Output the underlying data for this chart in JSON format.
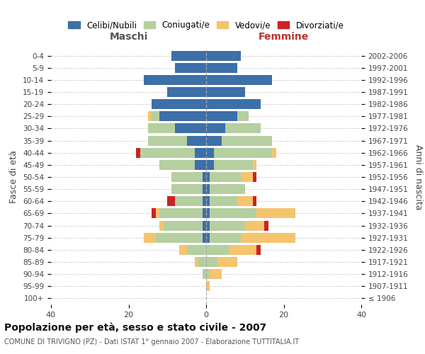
{
  "age_groups": [
    "0-4",
    "5-9",
    "10-14",
    "15-19",
    "20-24",
    "25-29",
    "30-34",
    "35-39",
    "40-44",
    "45-49",
    "50-54",
    "55-59",
    "60-64",
    "65-69",
    "70-74",
    "75-79",
    "80-84",
    "85-89",
    "90-94",
    "95-99",
    "100+"
  ],
  "birth_years": [
    "2002-2006",
    "1997-2001",
    "1992-1996",
    "1987-1991",
    "1982-1986",
    "1977-1981",
    "1972-1976",
    "1967-1971",
    "1962-1966",
    "1957-1961",
    "1952-1956",
    "1947-1951",
    "1942-1946",
    "1937-1941",
    "1932-1936",
    "1927-1931",
    "1922-1926",
    "1917-1921",
    "1912-1916",
    "1907-1911",
    "≤ 1906"
  ],
  "males": {
    "celibi": [
      9,
      8,
      16,
      10,
      14,
      12,
      8,
      5,
      3,
      3,
      1,
      1,
      1,
      1,
      1,
      1,
      0,
      0,
      0,
      0,
      0
    ],
    "coniugati": [
      0,
      0,
      0,
      0,
      0,
      2,
      7,
      10,
      14,
      9,
      8,
      8,
      7,
      11,
      10,
      12,
      5,
      2,
      1,
      0,
      0
    ],
    "vedovi": [
      0,
      0,
      0,
      0,
      0,
      1,
      0,
      0,
      0,
      0,
      0,
      0,
      0,
      1,
      1,
      3,
      2,
      1,
      0,
      0,
      0
    ],
    "divorziati": [
      0,
      0,
      0,
      0,
      0,
      0,
      0,
      0,
      1,
      0,
      0,
      0,
      2,
      1,
      0,
      0,
      0,
      0,
      0,
      0,
      0
    ]
  },
  "females": {
    "nubili": [
      9,
      8,
      17,
      10,
      14,
      8,
      5,
      4,
      2,
      2,
      1,
      1,
      1,
      1,
      1,
      1,
      0,
      0,
      0,
      0,
      0
    ],
    "coniugate": [
      0,
      0,
      0,
      0,
      0,
      3,
      9,
      13,
      15,
      10,
      8,
      9,
      7,
      12,
      9,
      8,
      6,
      3,
      1,
      0,
      0
    ],
    "vedove": [
      0,
      0,
      0,
      0,
      0,
      0,
      0,
      0,
      1,
      1,
      3,
      0,
      4,
      10,
      5,
      14,
      7,
      5,
      3,
      1,
      0
    ],
    "divorziate": [
      0,
      0,
      0,
      0,
      0,
      0,
      0,
      0,
      0,
      0,
      1,
      0,
      1,
      0,
      1,
      0,
      1,
      0,
      0,
      0,
      0
    ]
  },
  "colors": {
    "celibi": "#3d6fa8",
    "coniugati": "#b5cfa0",
    "vedovi": "#f5c46e",
    "divorziati": "#cc2222"
  },
  "title": "Popolazione per età, sesso e stato civile - 2007",
  "subtitle": "COMUNE DI TRIVIGNO (PZ) - Dati ISTAT 1° gennaio 2007 - Elaborazione TUTTITALIA.IT",
  "xlabel_left": "Maschi",
  "xlabel_right": "Femmine",
  "ylabel_left": "Fasce di età",
  "ylabel_right": "Anni di nascita",
  "xlim": 40,
  "legend_labels": [
    "Celibi/Nubili",
    "Coniugati/e",
    "Vedovi/e",
    "Divorziati/e"
  ],
  "background_color": "#ffffff",
  "grid_color": "#cccccc"
}
